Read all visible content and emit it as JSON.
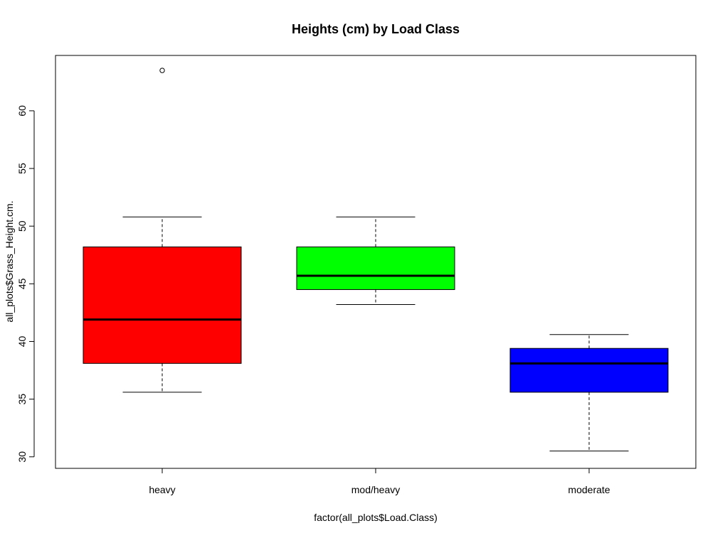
{
  "chart_data": {
    "type": "box",
    "title": "Heights (cm) by Load Class",
    "xlabel": "factor(all_plots$Load.Class)",
    "ylabel": "all_plots$Grass_Height.cm.",
    "ylim": [
      29,
      64.8
    ],
    "y_ticks": [
      30,
      35,
      40,
      45,
      50,
      55,
      60
    ],
    "y_tick_labels": [
      "30",
      "35",
      "40",
      "45",
      "50",
      "55",
      "60"
    ],
    "grid": false,
    "legend": "none",
    "categories": [
      "heavy",
      "mod/heavy",
      "moderate"
    ],
    "boxes": [
      {
        "category": "heavy",
        "color": "#ff0000",
        "whisker_low": 35.6,
        "q1": 38.1,
        "median": 41.9,
        "q3": 48.2,
        "whisker_high": 50.8,
        "outliers": [
          63.5
        ]
      },
      {
        "category": "mod/heavy",
        "color": "#00ff00",
        "whisker_low": 43.2,
        "q1": 44.5,
        "median": 45.7,
        "q3": 48.2,
        "whisker_high": 50.8,
        "outliers": []
      },
      {
        "category": "moderate",
        "color": "#0000ff",
        "whisker_low": 30.5,
        "q1": 35.6,
        "median": 38.1,
        "q3": 39.4,
        "whisker_high": 40.6,
        "outliers": []
      }
    ]
  }
}
